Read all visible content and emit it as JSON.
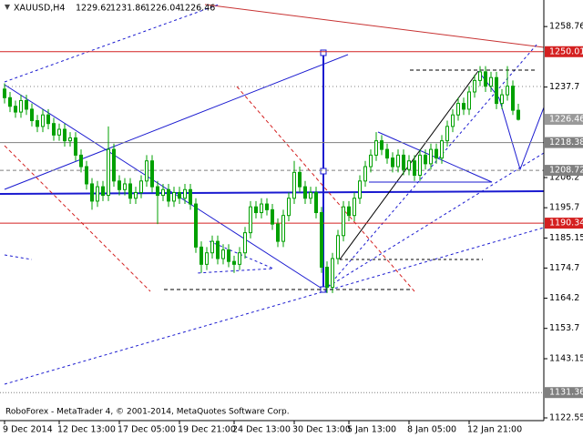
{
  "chart_data": {
    "type": "candlestick",
    "header": {
      "symbol": "XAUUSD,H4",
      "values": [
        1229.62,
        1231.86,
        1226.04,
        1226.46
      ]
    },
    "footer": "RoboForex - MetaTrader 4, © 2001-2014, MetaQuotes Software Corp.",
    "color": "#00a000",
    "ylim": [
      1121.6,
      1268.0
    ],
    "yticks": [
      1258.76,
      1237.7,
      1206.2,
      1195.7,
      1185.15,
      1174.7,
      1164.2,
      1153.7,
      1143.15,
      1122.55
    ],
    "grid": false,
    "levels": [
      {
        "value": 1250.01,
        "color": "#d42020",
        "style": "solid"
      },
      {
        "value": 1226.46,
        "color": "#9a9a9a",
        "style": "none"
      },
      {
        "value": 1218.38,
        "color": "#808080",
        "style": "solid"
      },
      {
        "value": 1208.72,
        "color": "#808080",
        "style": "dashed"
      },
      {
        "value": 1190.34,
        "color": "#d42020",
        "style": "solid"
      },
      {
        "value": 1131.36,
        "color": "#808080",
        "style": "dotted"
      }
    ],
    "categories": [
      "9 Dec 2014",
      null,
      null,
      null,
      null,
      null,
      null,
      null,
      null,
      null,
      "12 Dec 13:00",
      null,
      null,
      null,
      null,
      null,
      null,
      null,
      null,
      null,
      null,
      "17 Dec 05:00",
      null,
      null,
      null,
      null,
      null,
      null,
      null,
      null,
      null,
      null,
      "19 Dec 21:00",
      null,
      null,
      null,
      null,
      null,
      null,
      null,
      null,
      null,
      "24 Dec 13:00",
      null,
      null,
      null,
      null,
      null,
      null,
      null,
      null,
      null,
      null,
      "30 Dec 13:00",
      null,
      null,
      null,
      null,
      null,
      null,
      null,
      null,
      null,
      "5 Jan 13:00",
      null,
      null,
      null,
      null,
      null,
      null,
      null,
      null,
      null,
      null,
      "8 Jan 05:00",
      null,
      null,
      null,
      null,
      null,
      null,
      null,
      null,
      null,
      null,
      "12 Jan 21:00",
      null,
      null,
      null,
      null,
      null,
      null,
      null,
      null,
      null
    ],
    "ohlc": [
      [
        1237,
        1239,
        1232,
        1234
      ],
      [
        1234,
        1236,
        1229,
        1231
      ],
      [
        1231,
        1233,
        1227,
        1229
      ],
      [
        1229,
        1235,
        1227,
        1233
      ],
      [
        1233,
        1235,
        1228,
        1230
      ],
      [
        1230,
        1232,
        1224,
        1226
      ],
      [
        1226,
        1228,
        1222,
        1224
      ],
      [
        1224,
        1230,
        1222,
        1228
      ],
      [
        1228,
        1230,
        1223,
        1225
      ],
      [
        1225,
        1227,
        1219,
        1221
      ],
      [
        1221,
        1225,
        1219,
        1223
      ],
      [
        1223,
        1225,
        1217,
        1219
      ],
      [
        1219,
        1222,
        1217,
        1220
      ],
      [
        1220,
        1222,
        1212,
        1214
      ],
      [
        1214,
        1216,
        1208,
        1210
      ],
      [
        1210,
        1212,
        1202,
        1204
      ],
      [
        1204,
        1206,
        1195,
        1198
      ],
      [
        1198,
        1205,
        1196,
        1203
      ],
      [
        1203,
        1205,
        1198,
        1200
      ],
      [
        1200,
        1224,
        1198,
        1216
      ],
      [
        1216,
        1218,
        1203,
        1205
      ],
      [
        1205,
        1207,
        1200,
        1202
      ],
      [
        1202,
        1206,
        1200,
        1204
      ],
      [
        1204,
        1206,
        1197,
        1199
      ],
      [
        1199,
        1203,
        1197,
        1201
      ],
      [
        1201,
        1207,
        1199,
        1205
      ],
      [
        1205,
        1214,
        1203,
        1212
      ],
      [
        1212,
        1214,
        1201,
        1203
      ],
      [
        1203,
        1205,
        1190,
        1200
      ],
      [
        1200,
        1204,
        1198,
        1202
      ],
      [
        1202,
        1204,
        1196,
        1198
      ],
      [
        1198,
        1203,
        1196,
        1201
      ],
      [
        1201,
        1203,
        1197,
        1199
      ],
      [
        1199,
        1204,
        1197,
        1202
      ],
      [
        1202,
        1204,
        1195,
        1197
      ],
      [
        1197,
        1199,
        1180,
        1182
      ],
      [
        1182,
        1184,
        1173,
        1176
      ],
      [
        1176,
        1182,
        1174,
        1180
      ],
      [
        1180,
        1186,
        1178,
        1184
      ],
      [
        1184,
        1186,
        1176,
        1178
      ],
      [
        1178,
        1183,
        1176,
        1181
      ],
      [
        1181,
        1183,
        1175,
        1177
      ],
      [
        1177,
        1179,
        1173,
        1176
      ],
      [
        1176,
        1182,
        1174,
        1180
      ],
      [
        1180,
        1189,
        1178,
        1187
      ],
      [
        1187,
        1198,
        1185,
        1196
      ],
      [
        1196,
        1198,
        1192,
        1194
      ],
      [
        1194,
        1199,
        1192,
        1197
      ],
      [
        1197,
        1199,
        1193,
        1195
      ],
      [
        1195,
        1197,
        1188,
        1190
      ],
      [
        1190,
        1192,
        1182,
        1184
      ],
      [
        1184,
        1195,
        1182,
        1193
      ],
      [
        1193,
        1201,
        1191,
        1199
      ],
      [
        1199,
        1212,
        1197,
        1208
      ],
      [
        1208,
        1210,
        1201,
        1203
      ],
      [
        1203,
        1205,
        1197,
        1199
      ],
      [
        1199,
        1203,
        1197,
        1201
      ],
      [
        1201,
        1203,
        1192,
        1194
      ],
      [
        1194,
        1196,
        1173,
        1175
      ],
      [
        1175,
        1177,
        1166,
        1168
      ],
      [
        1168,
        1180,
        1166,
        1178
      ],
      [
        1178,
        1188,
        1176,
        1186
      ],
      [
        1186,
        1198,
        1184,
        1196
      ],
      [
        1196,
        1198,
        1191,
        1193
      ],
      [
        1193,
        1201,
        1191,
        1199
      ],
      [
        1199,
        1207,
        1197,
        1205
      ],
      [
        1205,
        1212,
        1203,
        1210
      ],
      [
        1210,
        1216,
        1208,
        1214
      ],
      [
        1214,
        1222,
        1212,
        1219
      ],
      [
        1219,
        1221,
        1214,
        1216
      ],
      [
        1216,
        1218,
        1211,
        1213
      ],
      [
        1213,
        1215,
        1208,
        1210
      ],
      [
        1210,
        1216,
        1208,
        1214
      ],
      [
        1214,
        1216,
        1207,
        1209
      ],
      [
        1209,
        1214,
        1207,
        1212
      ],
      [
        1212,
        1214,
        1205,
        1207
      ],
      [
        1207,
        1216,
        1205,
        1214
      ],
      [
        1214,
        1216,
        1209,
        1211
      ],
      [
        1211,
        1218,
        1209,
        1216
      ],
      [
        1216,
        1218,
        1211,
        1213
      ],
      [
        1213,
        1221,
        1211,
        1219
      ],
      [
        1219,
        1226,
        1217,
        1224
      ],
      [
        1224,
        1230,
        1222,
        1228
      ],
      [
        1228,
        1234,
        1226,
        1232
      ],
      [
        1232,
        1234,
        1228,
        1230
      ],
      [
        1230,
        1238,
        1228,
        1236
      ],
      [
        1236,
        1242,
        1234,
        1240
      ],
      [
        1240,
        1245,
        1238,
        1243
      ],
      [
        1243,
        1245,
        1236,
        1238
      ],
      [
        1238,
        1243,
        1236,
        1241
      ],
      [
        1241,
        1243,
        1230,
        1232
      ],
      [
        1232,
        1237,
        1230,
        1235
      ],
      [
        1235,
        1245,
        1233,
        1238
      ],
      [
        1238,
        1240,
        1228,
        1229.62
      ],
      [
        1229.62,
        1231.86,
        1226.04,
        1226.46
      ]
    ]
  }
}
